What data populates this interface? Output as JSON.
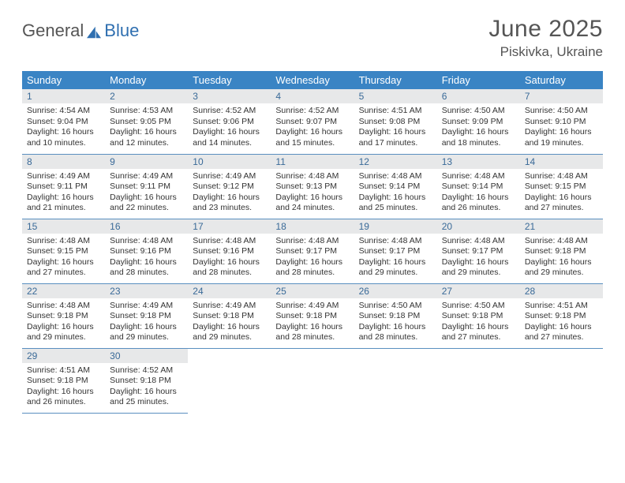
{
  "logo": {
    "text1": "General",
    "text2": "Blue",
    "accent_color": "#2f6fb0"
  },
  "title": "June 2025",
  "location": "Piskivka, Ukraine",
  "header_bg": "#3a84c4",
  "header_fg": "#ffffff",
  "grid_line": "#5a8fc0",
  "daynum_bg": "#e7e8e9",
  "daynum_fg": "#3a6a98",
  "weekdays": [
    "Sunday",
    "Monday",
    "Tuesday",
    "Wednesday",
    "Thursday",
    "Friday",
    "Saturday"
  ],
  "weeks": [
    [
      {
        "n": "1",
        "sr": "4:54 AM",
        "ss": "9:04 PM",
        "dl": "16 hours and 10 minutes."
      },
      {
        "n": "2",
        "sr": "4:53 AM",
        "ss": "9:05 PM",
        "dl": "16 hours and 12 minutes."
      },
      {
        "n": "3",
        "sr": "4:52 AM",
        "ss": "9:06 PM",
        "dl": "16 hours and 14 minutes."
      },
      {
        "n": "4",
        "sr": "4:52 AM",
        "ss": "9:07 PM",
        "dl": "16 hours and 15 minutes."
      },
      {
        "n": "5",
        "sr": "4:51 AM",
        "ss": "9:08 PM",
        "dl": "16 hours and 17 minutes."
      },
      {
        "n": "6",
        "sr": "4:50 AM",
        "ss": "9:09 PM",
        "dl": "16 hours and 18 minutes."
      },
      {
        "n": "7",
        "sr": "4:50 AM",
        "ss": "9:10 PM",
        "dl": "16 hours and 19 minutes."
      }
    ],
    [
      {
        "n": "8",
        "sr": "4:49 AM",
        "ss": "9:11 PM",
        "dl": "16 hours and 21 minutes."
      },
      {
        "n": "9",
        "sr": "4:49 AM",
        "ss": "9:11 PM",
        "dl": "16 hours and 22 minutes."
      },
      {
        "n": "10",
        "sr": "4:49 AM",
        "ss": "9:12 PM",
        "dl": "16 hours and 23 minutes."
      },
      {
        "n": "11",
        "sr": "4:48 AM",
        "ss": "9:13 PM",
        "dl": "16 hours and 24 minutes."
      },
      {
        "n": "12",
        "sr": "4:48 AM",
        "ss": "9:14 PM",
        "dl": "16 hours and 25 minutes."
      },
      {
        "n": "13",
        "sr": "4:48 AM",
        "ss": "9:14 PM",
        "dl": "16 hours and 26 minutes."
      },
      {
        "n": "14",
        "sr": "4:48 AM",
        "ss": "9:15 PM",
        "dl": "16 hours and 27 minutes."
      }
    ],
    [
      {
        "n": "15",
        "sr": "4:48 AM",
        "ss": "9:15 PM",
        "dl": "16 hours and 27 minutes."
      },
      {
        "n": "16",
        "sr": "4:48 AM",
        "ss": "9:16 PM",
        "dl": "16 hours and 28 minutes."
      },
      {
        "n": "17",
        "sr": "4:48 AM",
        "ss": "9:16 PM",
        "dl": "16 hours and 28 minutes."
      },
      {
        "n": "18",
        "sr": "4:48 AM",
        "ss": "9:17 PM",
        "dl": "16 hours and 28 minutes."
      },
      {
        "n": "19",
        "sr": "4:48 AM",
        "ss": "9:17 PM",
        "dl": "16 hours and 29 minutes."
      },
      {
        "n": "20",
        "sr": "4:48 AM",
        "ss": "9:17 PM",
        "dl": "16 hours and 29 minutes."
      },
      {
        "n": "21",
        "sr": "4:48 AM",
        "ss": "9:18 PM",
        "dl": "16 hours and 29 minutes."
      }
    ],
    [
      {
        "n": "22",
        "sr": "4:48 AM",
        "ss": "9:18 PM",
        "dl": "16 hours and 29 minutes."
      },
      {
        "n": "23",
        "sr": "4:49 AM",
        "ss": "9:18 PM",
        "dl": "16 hours and 29 minutes."
      },
      {
        "n": "24",
        "sr": "4:49 AM",
        "ss": "9:18 PM",
        "dl": "16 hours and 29 minutes."
      },
      {
        "n": "25",
        "sr": "4:49 AM",
        "ss": "9:18 PM",
        "dl": "16 hours and 28 minutes."
      },
      {
        "n": "26",
        "sr": "4:50 AM",
        "ss": "9:18 PM",
        "dl": "16 hours and 28 minutes."
      },
      {
        "n": "27",
        "sr": "4:50 AM",
        "ss": "9:18 PM",
        "dl": "16 hours and 27 minutes."
      },
      {
        "n": "28",
        "sr": "4:51 AM",
        "ss": "9:18 PM",
        "dl": "16 hours and 27 minutes."
      }
    ],
    [
      {
        "n": "29",
        "sr": "4:51 AM",
        "ss": "9:18 PM",
        "dl": "16 hours and 26 minutes."
      },
      {
        "n": "30",
        "sr": "4:52 AM",
        "ss": "9:18 PM",
        "dl": "16 hours and 25 minutes."
      },
      null,
      null,
      null,
      null,
      null
    ]
  ],
  "labels": {
    "sunrise": "Sunrise:",
    "sunset": "Sunset:",
    "daylight": "Daylight:"
  }
}
